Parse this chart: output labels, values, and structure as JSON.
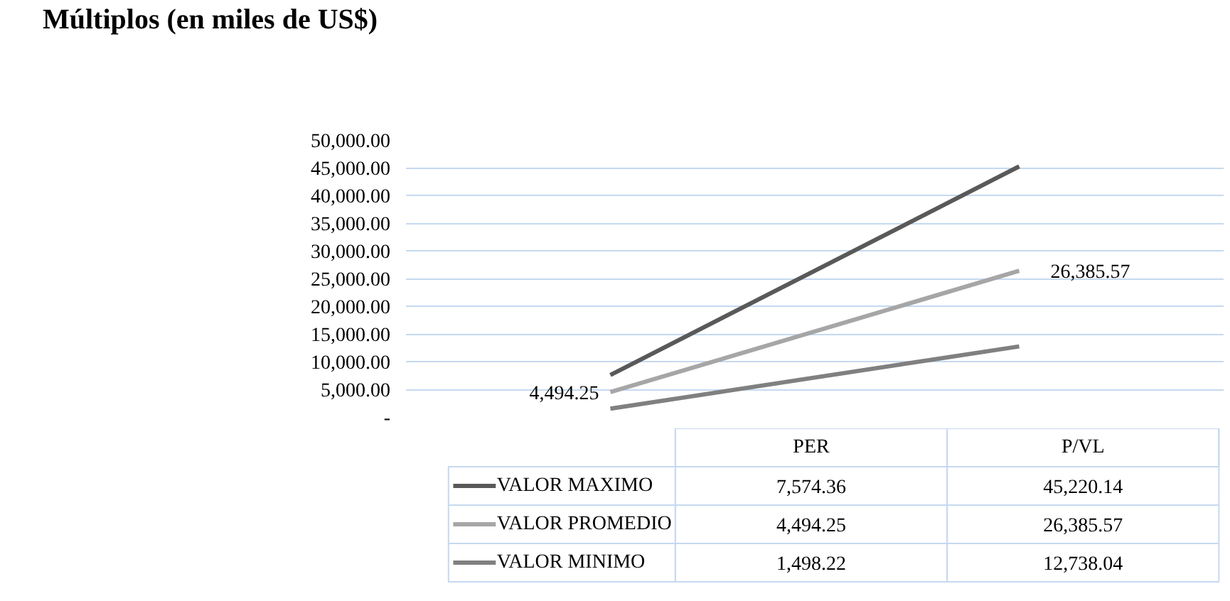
{
  "chart_data": {
    "type": "line",
    "title": "Múltiplos (en miles de US$)",
    "categories": [
      "PER",
      "P/VL"
    ],
    "series": [
      {
        "name": "VALOR MAXIMO",
        "color": "#595959",
        "values": [
          7574.36,
          45220.14
        ],
        "value_labels": [
          "7,574.36",
          "45,220.14"
        ]
      },
      {
        "name": "VALOR PROMEDIO",
        "color": "#a6a6a6",
        "values": [
          4494.25,
          26385.57
        ],
        "value_labels": [
          "4,494.25",
          "26,385.57"
        ]
      },
      {
        "name": "VALOR MINIMO",
        "color": "#808080",
        "values": [
          1498.22,
          12738.04
        ],
        "value_labels": [
          "1,498.22",
          "12,738.04"
        ]
      }
    ],
    "annotations": [
      {
        "text": "4,494.25",
        "x": "PER",
        "y": 4494.25
      },
      {
        "text": "26,385.57",
        "x": "P/VL",
        "y": 26385.57
      }
    ],
    "ylim": [
      0,
      50000
    ],
    "yticks": [
      {
        "value": 0,
        "label": "-"
      },
      {
        "value": 5000,
        "label": "5,000.00"
      },
      {
        "value": 10000,
        "label": "10,000.00"
      },
      {
        "value": 15000,
        "label": "15,000.00"
      },
      {
        "value": 20000,
        "label": "20,000.00"
      },
      {
        "value": 25000,
        "label": "25,000.00"
      },
      {
        "value": 30000,
        "label": "30,000.00"
      },
      {
        "value": 35000,
        "label": "35,000.00"
      },
      {
        "value": 40000,
        "label": "40,000.00"
      },
      {
        "value": 45000,
        "label": "45,000.00"
      },
      {
        "value": 50000,
        "label": "50,000.00"
      }
    ],
    "grid": "y",
    "legend": "bottom",
    "marker": "none",
    "line_style": "solid"
  }
}
